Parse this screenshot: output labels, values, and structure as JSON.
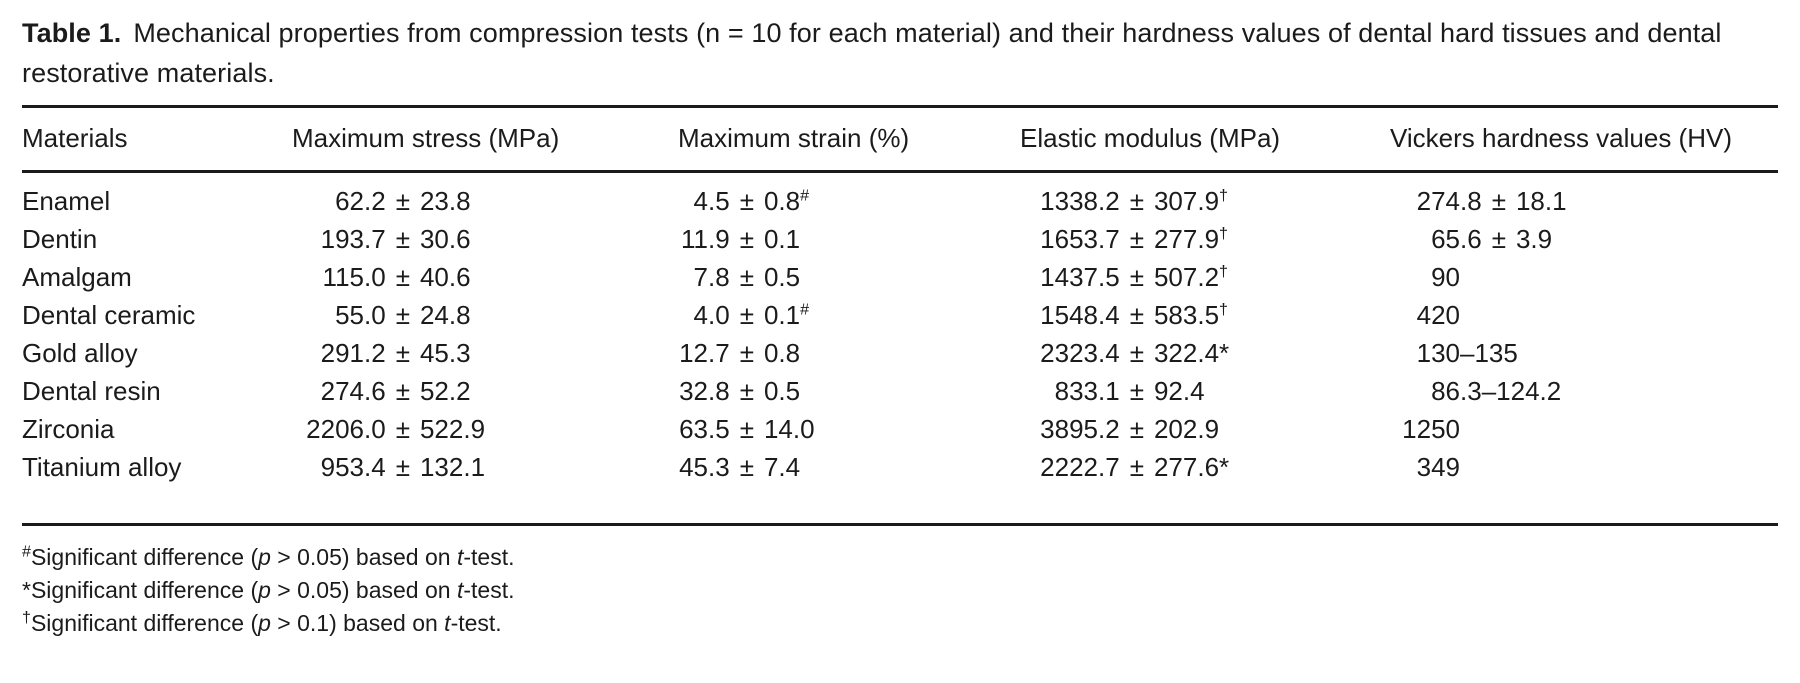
{
  "caption": {
    "label": "Table 1.",
    "text": "Mechanical properties from compression tests (n = 10 for each material) and their hardness values of dental hard tissues and dental restorative materials."
  },
  "table": {
    "columns": [
      "Materials",
      "Maximum stress (MPa)",
      "Maximum strain (%)",
      "Elastic modulus (MPa)",
      "Vickers hardness values (HV)"
    ],
    "rows": [
      {
        "material": "Enamel",
        "cells": [
          {
            "int": "62",
            "frac": ".2",
            "sep": "±",
            "b": "23.8",
            "sup": ""
          },
          {
            "int": "4",
            "frac": ".5",
            "sep": "±",
            "b": "0.8",
            "sup": "#"
          },
          {
            "int": "1338",
            "frac": ".2",
            "sep": "±",
            "b": "307.9",
            "sup": "†"
          },
          {
            "int": "274",
            "frac": ".8",
            "sep": "±",
            "b": "18.1",
            "sup": ""
          }
        ]
      },
      {
        "material": "Dentin",
        "cells": [
          {
            "int": "193",
            "frac": ".7",
            "sep": "±",
            "b": "30.6",
            "sup": ""
          },
          {
            "int": "11",
            "frac": ".9",
            "sep": "±",
            "b": "0.1",
            "sup": ""
          },
          {
            "int": "1653",
            "frac": ".7",
            "sep": "±",
            "b": "277.9",
            "sup": "†"
          },
          {
            "int": "65",
            "frac": ".6",
            "sep": "±",
            "b": "3.9",
            "sup": ""
          }
        ]
      },
      {
        "material": "Amalgam",
        "cells": [
          {
            "int": "115",
            "frac": ".0",
            "sep": "±",
            "b": "40.6",
            "sup": ""
          },
          {
            "int": "7",
            "frac": ".8",
            "sep": "±",
            "b": "0.5",
            "sup": ""
          },
          {
            "int": "1437",
            "frac": ".5",
            "sep": "±",
            "b": "507.2",
            "sup": "†"
          },
          {
            "int": "90",
            "frac": "",
            "sep": "",
            "b": "",
            "sup": ""
          }
        ]
      },
      {
        "material": "Dental ceramic",
        "cells": [
          {
            "int": "55",
            "frac": ".0",
            "sep": "±",
            "b": "24.8",
            "sup": ""
          },
          {
            "int": "4",
            "frac": ".0",
            "sep": "±",
            "b": "0.1",
            "sup": "#"
          },
          {
            "int": "1548",
            "frac": ".4",
            "sep": "±",
            "b": "583.5",
            "sup": "†"
          },
          {
            "int": "420",
            "frac": "",
            "sep": "",
            "b": "",
            "sup": ""
          }
        ]
      },
      {
        "material": "Gold alloy",
        "cells": [
          {
            "int": "291",
            "frac": ".2",
            "sep": "±",
            "b": "45.3",
            "sup": ""
          },
          {
            "int": "12",
            "frac": ".7",
            "sep": "±",
            "b": "0.8",
            "sup": ""
          },
          {
            "int": "2323",
            "frac": ".4",
            "sep": "±",
            "b": "322.4",
            "sup": "*"
          },
          {
            "int": "130",
            "frac": "",
            "sep": "–",
            "b": "135",
            "sup": ""
          }
        ]
      },
      {
        "material": "Dental resin",
        "cells": [
          {
            "int": "274",
            "frac": ".6",
            "sep": "±",
            "b": "52.2",
            "sup": ""
          },
          {
            "int": "32",
            "frac": ".8",
            "sep": "±",
            "b": "0.5",
            "sup": ""
          },
          {
            "int": "833",
            "frac": ".1",
            "sep": "±",
            "b": "92.4",
            "sup": ""
          },
          {
            "int": "86",
            "frac": ".3",
            "sep": "–",
            "b": "124.2",
            "sup": ""
          }
        ]
      },
      {
        "material": "Zirconia",
        "cells": [
          {
            "int": "2206",
            "frac": ".0",
            "sep": "±",
            "b": "522.9",
            "sup": ""
          },
          {
            "int": "63",
            "frac": ".5",
            "sep": "±",
            "b": "14.0",
            "sup": ""
          },
          {
            "int": "3895",
            "frac": ".2",
            "sep": "±",
            "b": "202.9",
            "sup": ""
          },
          {
            "int": "1250",
            "frac": "",
            "sep": "",
            "b": "",
            "sup": ""
          }
        ]
      },
      {
        "material": "Titanium alloy",
        "cells": [
          {
            "int": "953",
            "frac": ".4",
            "sep": "±",
            "b": "132.1",
            "sup": ""
          },
          {
            "int": "45",
            "frac": ".3",
            "sep": "±",
            "b": "7.4",
            "sup": ""
          },
          {
            "int": "2222",
            "frac": ".7",
            "sep": "±",
            "b": "277.6",
            "sup": "*"
          },
          {
            "int": "349",
            "frac": "",
            "sep": "",
            "b": "",
            "sup": ""
          }
        ]
      }
    ]
  },
  "footnotes": [
    {
      "marker": "#",
      "marker_raised": true,
      "segments": [
        {
          "t": "Significant difference (",
          "i": false
        },
        {
          "t": "p",
          "i": true
        },
        {
          "t": " > 0.05) based on ",
          "i": false
        },
        {
          "t": "t",
          "i": true
        },
        {
          "t": "-test.",
          "i": false
        }
      ]
    },
    {
      "marker": "*",
      "marker_raised": false,
      "segments": [
        {
          "t": "Significant difference (",
          "i": false
        },
        {
          "t": "p",
          "i": true
        },
        {
          "t": " > 0.05) based on ",
          "i": false
        },
        {
          "t": "t",
          "i": true
        },
        {
          "t": "-test.",
          "i": false
        }
      ]
    },
    {
      "marker": "†",
      "marker_raised": true,
      "segments": [
        {
          "t": "Significant difference (",
          "i": false
        },
        {
          "t": "p",
          "i": true
        },
        {
          "t": " > 0.1) based on ",
          "i": false
        },
        {
          "t": "t",
          "i": true
        },
        {
          "t": "-test.",
          "i": false
        }
      ]
    }
  ],
  "colors": {
    "text": "#1b1b1b",
    "rule": "#1b1b1b",
    "background": "#ffffff"
  }
}
